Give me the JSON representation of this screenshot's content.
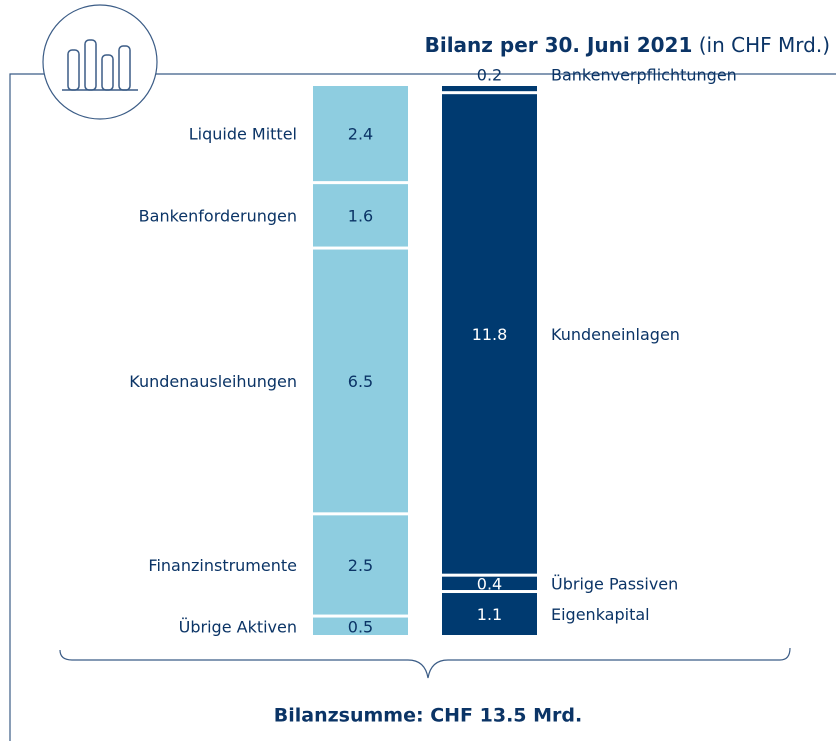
{
  "chart_data": {
    "type": "stacked_column",
    "title": "Bilanz per 30. Juni 2021",
    "subtitle": "(in CHF Mrd.)",
    "footer": "Bilanzsumme: CHF 13.5 Mrd.",
    "columns": [
      {
        "color": "#8ecde0",
        "text_color": "#0b3466",
        "side": "left",
        "segments": [
          {
            "label": "Liquide Mittel",
            "value": 2.4
          },
          {
            "label": "Bankenforderungen",
            "value": 1.6
          },
          {
            "label": "Kundenausleihungen",
            "value": 6.5
          },
          {
            "label": "Finanzinstrumente",
            "value": 2.5
          },
          {
            "label": "Übrige Aktiven",
            "value": 0.5
          }
        ]
      },
      {
        "color": "#003a70",
        "text_color": "#ffffff",
        "side": "right",
        "segments": [
          {
            "label": "Bankenverpflichtungen",
            "value": 0.2
          },
          {
            "label": "Kundeneinlagen",
            "value": 11.8
          },
          {
            "label": "Übrige Passiven",
            "value": 0.4
          },
          {
            "label": "Eigenkapital",
            "value": 1.1
          }
        ]
      }
    ]
  }
}
